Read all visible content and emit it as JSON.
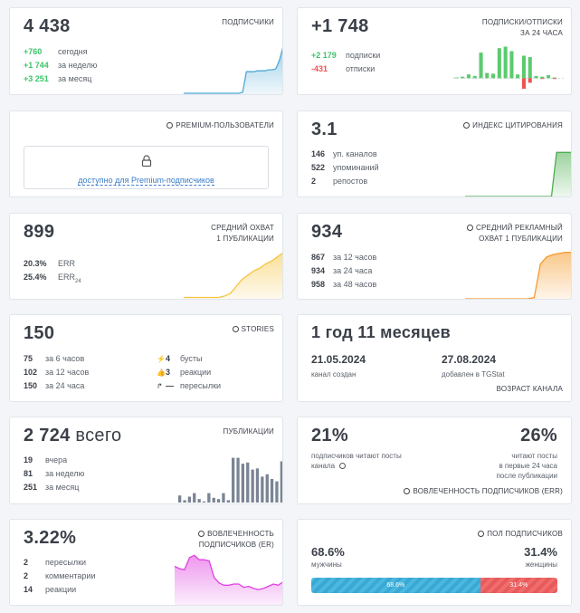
{
  "subscribers": {
    "value": "4 438",
    "title": "ПОДПИСЧИКИ",
    "rows": [
      {
        "value": "+760",
        "label": "сегодня"
      },
      {
        "value": "+1 744",
        "label": "за неделю"
      },
      {
        "value": "+3 251",
        "label": "за месяц"
      }
    ],
    "color": "#4fa9d6"
  },
  "subs_unsubs": {
    "value": "+1 748",
    "title_1": "ПОДПИСКИ/ОТПИСКИ",
    "title_2": "ЗА 24 ЧАСА",
    "rows": [
      {
        "value": "+2 179",
        "label": "подписки"
      },
      {
        "value": "-431",
        "label": "отписки"
      }
    ],
    "pos_color": "#5ccb6f",
    "neg_color": "#ef5350"
  },
  "premium": {
    "title": "PREMIUM-ПОЛЬЗОВАТЕЛИ",
    "link": "доступно для Premium-подписчиков",
    "icon": "lock-icon"
  },
  "citation": {
    "value": "3.1",
    "title": "ИНДЕКС ЦИТИРОВАНИЯ",
    "rows": [
      {
        "value": "146",
        "label": "уп. каналов"
      },
      {
        "value": "522",
        "label": "упоминаний"
      },
      {
        "value": "2",
        "label": "репостов"
      }
    ],
    "color": "#4caf50"
  },
  "reach": {
    "value": "899",
    "title_1": "СРЕДНИЙ ОХВАТ",
    "title_2": "1 ПУБЛИКАЦИИ",
    "rows": [
      {
        "value": "20.3%",
        "label": "ERR"
      },
      {
        "value": "25.4%",
        "label": "ERR",
        "sub": "24"
      }
    ],
    "color": "#f5c542"
  },
  "ad_reach": {
    "value": "934",
    "title_1": "СРЕДНИЙ РЕКЛАМНЫЙ",
    "title_2": "ОХВАТ 1 ПУБЛИКАЦИИ",
    "rows": [
      {
        "value": "867",
        "label": "за 12 часов"
      },
      {
        "value": "934",
        "label": "за 24 часа"
      },
      {
        "value": "958",
        "label": "за 48 часов"
      }
    ],
    "color": "#f59a2a"
  },
  "stories": {
    "value": "150",
    "title": "STORIES",
    "rows": [
      {
        "value": "75",
        "label": "за 6 часов"
      },
      {
        "value": "102",
        "label": "за 12 часов"
      },
      {
        "value": "150",
        "label": "за 24 часа"
      }
    ],
    "extra": [
      {
        "icon": "boost-icon",
        "value": "4",
        "label": "бусты"
      },
      {
        "icon": "like-icon",
        "value": "3",
        "label": "реакции"
      },
      {
        "icon": "forward-icon",
        "value": "—",
        "label": "пересылки"
      }
    ]
  },
  "age": {
    "value": "1 год 11 месяцев",
    "created_date": "21.05.2024",
    "created_label": "канал создан",
    "added_date": "27.08.2024",
    "added_label": "добавлен в TGStat",
    "title": "ВОЗРАСТ КАНАЛА"
  },
  "posts": {
    "value": "2 724",
    "suffix": "всего",
    "title": "ПУБЛИКАЦИИ",
    "rows": [
      {
        "value": "19",
        "label": "вчера"
      },
      {
        "value": "81",
        "label": "за неделю"
      },
      {
        "value": "251",
        "label": "за месяц"
      }
    ],
    "color": "#7a8494"
  },
  "engagement": {
    "left_value": "21%",
    "left_label_1": "подписчиков читают посты",
    "left_label_2": "канала",
    "right_value": "26%",
    "right_label_1": "читают посты",
    "right_label_2": "в первые 24 часа",
    "right_label_3": "после публикации",
    "title": "ВОВЛЕЧЕННОСТЬ ПОДПИСЧИКОВ (ERR)"
  },
  "er": {
    "value": "3.22%",
    "title_1": "ВОВЛЕЧЕННОСТЬ",
    "title_2": "ПОДПИСЧИКОВ (ER)",
    "rows": [
      {
        "value": "2",
        "label": "пересылки"
      },
      {
        "value": "2",
        "label": "комментарии"
      },
      {
        "value": "14",
        "label": "реакции"
      }
    ],
    "color": "#e040e0"
  },
  "gender": {
    "title": "ПОЛ ПОДПИСЧИКОВ",
    "male_value": "68.6%",
    "male_label": "мужчины",
    "female_value": "31.4%",
    "female_label": "женщины",
    "male_fraction": 0.686,
    "female_fraction": 0.314,
    "male_color": "#4bb8e0",
    "female_color": "#ef6d6d"
  },
  "chart_data": [
    {
      "type": "area",
      "name": "subscribers",
      "values": [
        0,
        0,
        0,
        0,
        0,
        0,
        0,
        0,
        0,
        0,
        0,
        0,
        0,
        0,
        0,
        0,
        1,
        22,
        22,
        22,
        23,
        23,
        23,
        24,
        24,
        25,
        34,
        48
      ],
      "ylim": [
        0,
        50
      ]
    },
    {
      "type": "bar",
      "name": "subs_unsubs",
      "values": [
        1,
        2,
        5,
        3,
        34,
        7,
        6,
        40,
        42,
        36,
        5,
        30,
        28,
        3,
        2,
        4,
        1,
        0
      ],
      "negative": [
        0,
        0,
        0,
        0,
        0,
        0,
        0,
        0,
        0,
        0,
        0,
        14,
        6,
        0,
        1,
        0,
        1,
        0
      ],
      "ylim": [
        -20,
        45
      ]
    },
    {
      "type": "area",
      "name": "citation",
      "values": [
        0,
        0,
        0,
        0,
        0,
        0,
        0,
        0,
        0,
        0,
        0,
        0,
        0,
        0,
        0,
        0,
        0,
        0,
        30,
        30,
        30,
        30
      ],
      "ylim": [
        0,
        32
      ]
    },
    {
      "type": "area",
      "name": "reach",
      "values": [
        1,
        1,
        1,
        1,
        1,
        1,
        1,
        2,
        4,
        9,
        14,
        17,
        20,
        22,
        25,
        27,
        30,
        33
      ],
      "ylim": [
        0,
        35
      ]
    },
    {
      "type": "area",
      "name": "ad_reach",
      "values": [
        0,
        0,
        0,
        0,
        0,
        0,
        0,
        0,
        0,
        0,
        0,
        1,
        30,
        36,
        38,
        39,
        40,
        40
      ],
      "ylim": [
        0,
        42
      ]
    },
    {
      "type": "bar",
      "name": "posts",
      "values": [
        6,
        2,
        5,
        8,
        3,
        1,
        8,
        4,
        3,
        8,
        2,
        38,
        38,
        33,
        34,
        28,
        29,
        22,
        24,
        20,
        18,
        35
      ],
      "ylim": [
        0,
        40
      ]
    },
    {
      "type": "area",
      "name": "er",
      "values": [
        34,
        32,
        31,
        42,
        44,
        40,
        40,
        39,
        24,
        19,
        17,
        17,
        18,
        18,
        15,
        16,
        14,
        13,
        14,
        16,
        18,
        17,
        20
      ],
      "ylim": [
        0,
        50
      ]
    }
  ]
}
